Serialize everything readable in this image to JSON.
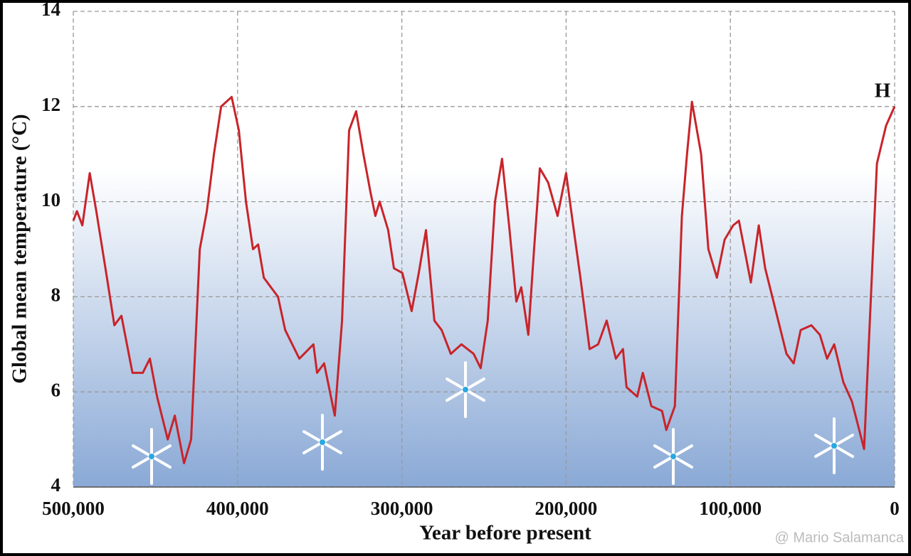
{
  "chart_data": {
    "type": "line",
    "xlabel": "Year before present",
    "ylabel": "Global mean temperature (°C)",
    "annotation": "H",
    "watermark": "@ Mario Salamanca",
    "xlim": [
      500000,
      0
    ],
    "ylim": [
      4,
      14
    ],
    "xticks": [
      {
        "value": 500000,
        "label": "500,000"
      },
      {
        "value": 400000,
        "label": "400,000"
      },
      {
        "value": 300000,
        "label": "300,000"
      },
      {
        "value": 200000,
        "label": "200,000"
      },
      {
        "value": 100000,
        "label": "100,000"
      },
      0
    ],
    "yticks": [
      4,
      6,
      8,
      10,
      12,
      14
    ],
    "grid": true,
    "x": [
      500000,
      497800,
      494500,
      490000,
      486000,
      480000,
      475000,
      470700,
      464000,
      457700,
      453400,
      449000,
      442500,
      438200,
      432600,
      428300,
      423000,
      418700,
      414400,
      410000,
      403600,
      399200,
      394900,
      390600,
      387500,
      384000,
      375400,
      371000,
      362400,
      353800,
      351600,
      347300,
      340800,
      336400,
      332100,
      327800,
      323400,
      319100,
      316100,
      313500,
      308300,
      304800,
      299700,
      294000,
      289700,
      285300,
      280200,
      275800,
      270200,
      263700,
      256300,
      252000,
      247700,
      243300,
      239000,
      234700,
      230300,
      227300,
      223000,
      219500,
      216000,
      210900,
      205200,
      200000,
      195700,
      191300,
      185700,
      180500,
      175300,
      169700,
      165400,
      163200,
      156700,
      153300,
      148100,
      141600,
      139000,
      133800,
      129500,
      126400,
      123400,
      117800,
      113400,
      108200,
      103500,
      98300,
      94800,
      87500,
      82700,
      78800,
      74500,
      65800,
      61500,
      57200,
      50700,
      45500,
      41100,
      36800,
      31200,
      26000,
      18600,
      10800,
      5200,
      0
    ],
    "series": [
      {
        "color": "#c8242a",
        "values": [
          9.6,
          9.8,
          9.5,
          10.6,
          9.8,
          8.5,
          7.4,
          7.6,
          6.4,
          6.4,
          6.7,
          5.9,
          5.0,
          5.5,
          4.5,
          5.0,
          9.0,
          9.8,
          11.0,
          12.0,
          12.2,
          11.5,
          10.0,
          9.0,
          9.1,
          8.4,
          8.0,
          7.3,
          6.7,
          7.0,
          6.4,
          6.6,
          5.5,
          7.5,
          11.5,
          11.9,
          11.0,
          10.2,
          9.7,
          10.0,
          9.4,
          8.6,
          8.5,
          7.7,
          8.5,
          9.4,
          7.5,
          7.3,
          6.8,
          7.0,
          6.8,
          6.5,
          7.5,
          10.0,
          10.9,
          9.5,
          7.9,
          8.2,
          7.2,
          9.0,
          10.7,
          10.4,
          9.7,
          10.6,
          9.5,
          8.4,
          6.9,
          7.0,
          7.5,
          6.7,
          6.9,
          6.1,
          5.9,
          6.4,
          5.7,
          5.6,
          5.2,
          5.7,
          9.7,
          11.0,
          12.1,
          11.0,
          9.0,
          8.4,
          9.2,
          9.5,
          9.6,
          8.3,
          9.5,
          8.6,
          8.0,
          6.8,
          6.6,
          7.3,
          7.4,
          7.2,
          6.7,
          7.0,
          6.2,
          5.8,
          4.8,
          10.8,
          11.6,
          12.0
        ]
      }
    ]
  }
}
